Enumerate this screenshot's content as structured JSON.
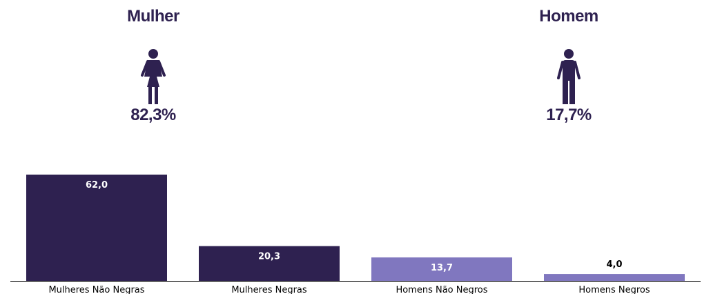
{
  "panels": {
    "left": {
      "title": "Mulher",
      "percent": "82,3%",
      "icon": "female-person-icon"
    },
    "right": {
      "title": "Homem",
      "percent": "17,7%",
      "icon": "male-person-icon"
    }
  },
  "colors": {
    "text": "#2e2150",
    "bar_dark": "#2e2150",
    "bar_light": "#8077bf",
    "label_on_bar": "#ffffff",
    "label_above_bar": "#000000"
  },
  "chart_data": {
    "type": "bar",
    "categories": [
      "Mulheres Não Negras",
      "Mulheres Negras",
      "Homens Não Negros",
      "Homens Negros"
    ],
    "values": [
      62.0,
      20.3,
      13.7,
      4.0
    ],
    "value_labels": [
      "62,0",
      "20,3",
      "13,7",
      "4,0"
    ],
    "bar_colors": [
      "#2e2150",
      "#2e2150",
      "#8077bf",
      "#8077bf"
    ],
    "title": "",
    "xlabel": "",
    "ylabel": "",
    "ylim": [
      0,
      62.0
    ],
    "grid": false,
    "legend": "none"
  }
}
